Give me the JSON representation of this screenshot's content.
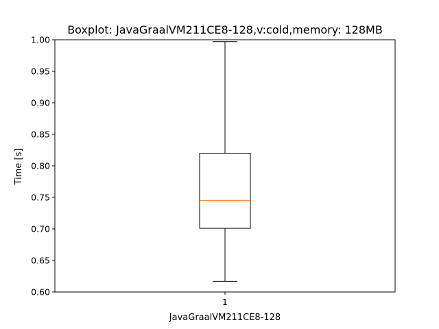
{
  "chart_data": {
    "type": "boxplot",
    "title": "Boxplot: JavaGraalVM211CE8-128,v:cold,memory: 128MB",
    "xlabel": "JavaGraalVM211CE8-128",
    "ylabel": "Time [s]",
    "ylim": [
      0.6,
      1.0
    ],
    "yticks": [
      0.6,
      0.65,
      0.7,
      0.75,
      0.8,
      0.85,
      0.9,
      0.95,
      1.0
    ],
    "ytick_labels": [
      "0.60",
      "0.65",
      "0.70",
      "0.75",
      "0.80",
      "0.85",
      "0.90",
      "0.95",
      "1.00"
    ],
    "categories": [
      "1"
    ],
    "boxes": [
      {
        "category": "1",
        "whisker_low": 0.617,
        "q1": 0.701,
        "median": 0.745,
        "q3": 0.82,
        "whisker_high": 0.997
      }
    ],
    "grid": false,
    "colors": {
      "box": "#000000",
      "median": "#ff7f0e"
    }
  }
}
